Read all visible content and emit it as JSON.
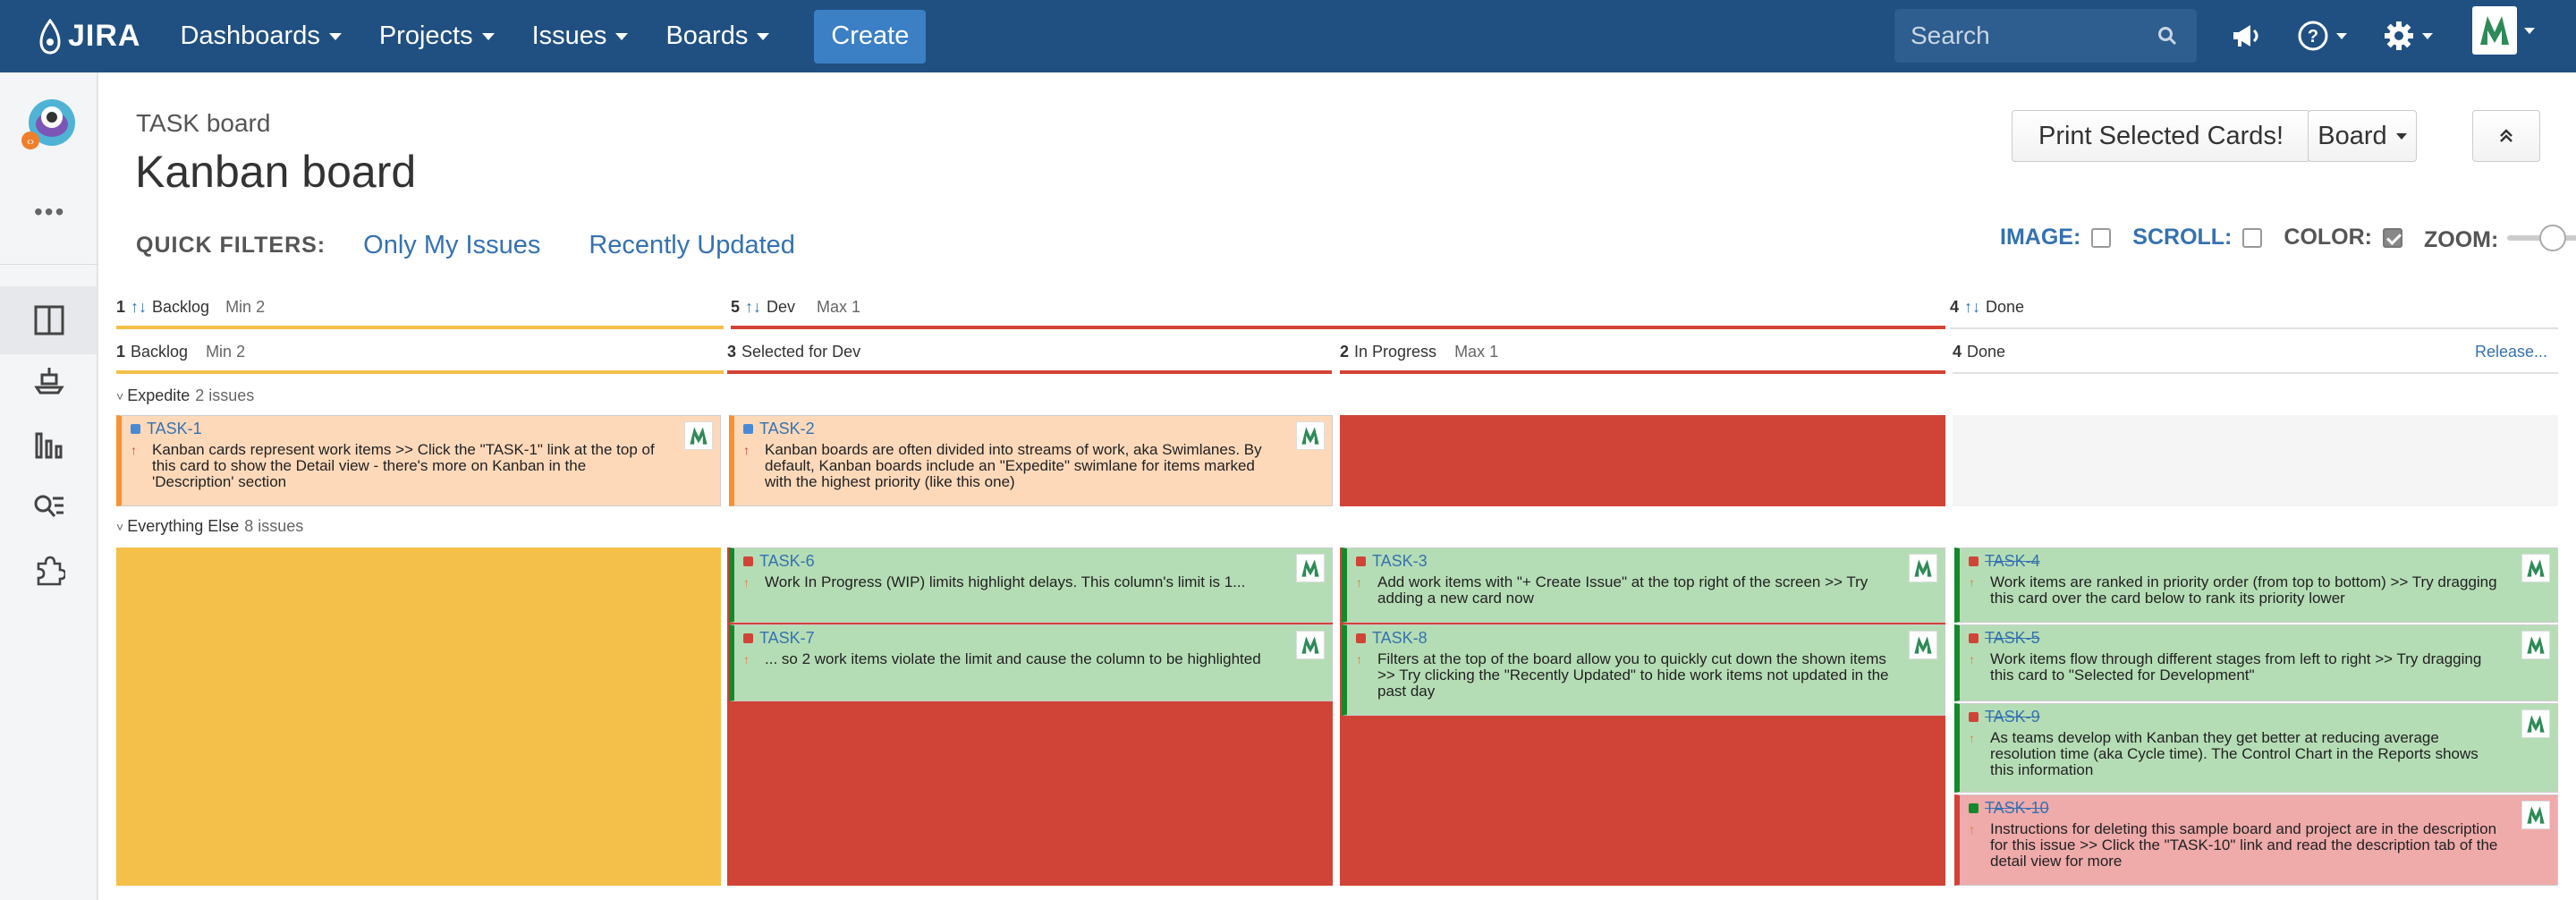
{
  "nav": {
    "logo": "JIRA",
    "items": [
      {
        "label": "Dashboards"
      },
      {
        "label": "Projects"
      },
      {
        "label": "Issues"
      },
      {
        "label": "Boards"
      }
    ],
    "create_label": "Create",
    "search_placeholder": "Search"
  },
  "header": {
    "subtitle": "TASK board",
    "title": "Kanban board",
    "print_label": "Print Selected Cards!",
    "board_label": "Board"
  },
  "quick_filters": {
    "label": "QUICK FILTERS:",
    "filters": [
      "Only My Issues",
      "Recently Updated"
    ]
  },
  "toggles": {
    "image": "IMAGE:",
    "scroll": "SCROLL:",
    "color": "COLOR:",
    "zoom": "ZOOM:",
    "color_checked": true
  },
  "mapped_columns": [
    {
      "count": "1",
      "name": "Backlog",
      "meta": "Min 2"
    },
    {
      "count": "5",
      "name": "Dev",
      "meta": "Max 1"
    },
    {
      "count": "4",
      "name": "Done",
      "meta": ""
    }
  ],
  "columns": [
    {
      "count": "1",
      "name": "Backlog",
      "meta": "Min 2"
    },
    {
      "count": "3",
      "name": "Selected for Dev",
      "meta": ""
    },
    {
      "count": "2",
      "name": "In Progress",
      "meta": "Max 1"
    },
    {
      "count": "4",
      "name": "Done",
      "meta": ""
    }
  ],
  "release_label": "Release...",
  "swimlanes": [
    {
      "name": "Expedite",
      "count": "2 issues"
    },
    {
      "name": "Everything Else",
      "count": "8 issues"
    }
  ],
  "cards": {
    "task1": {
      "key": "TASK-1",
      "summary": "Kanban cards represent work items >> Click the \"TASK-1\" link at the top of this card to show the Detail view - there's more on Kanban in the 'Description' section"
    },
    "task2": {
      "key": "TASK-2",
      "summary": "Kanban boards are often divided into streams of work, aka Swimlanes. By default, Kanban boards include an \"Expedite\" swimlane for items marked with the highest priority (like this one)"
    },
    "task6": {
      "key": "TASK-6",
      "summary": "Work In Progress (WIP) limits highlight delays. This column's limit is 1..."
    },
    "task7": {
      "key": "TASK-7",
      "summary": "... so 2 work items violate the limit and cause the column to be highlighted"
    },
    "task3": {
      "key": "TASK-3",
      "summary": "Add work items with \"+ Create Issue\" at the top right of the screen >> Try adding a new card now"
    },
    "task8": {
      "key": "TASK-8",
      "summary": "Filters at the top of the board allow you to quickly cut down the shown items >> Try clicking the \"Recently Updated\" to hide work items not updated in the past day"
    },
    "task4": {
      "key": "TASK-4",
      "summary": "Work items are ranked in priority order (from top to bottom) >> Try dragging this card over the card below to rank its priority lower"
    },
    "task5": {
      "key": "TASK-5",
      "summary": "Work items flow through different stages from left to right >> Try dragging this card to \"Selected for Development\""
    },
    "task9": {
      "key": "TASK-9",
      "summary": "As teams develop with Kanban they get better at reducing average resolution time (aka Cycle time). The Control Chart in the Reports shows this information"
    },
    "task10": {
      "key": "TASK-10",
      "summary": "Instructions for deleting this sample board and project are in the description for this issue >> Click the \"TASK-10\" link and read the description tab of the detail view for more"
    }
  },
  "colors": {
    "nav_bg": "#205081",
    "yellow": "#f4c04a",
    "red": "#d04437",
    "orange_card": "#fdd9ba",
    "green_card": "#b5ddb5",
    "pink_card": "#efaaaa"
  }
}
